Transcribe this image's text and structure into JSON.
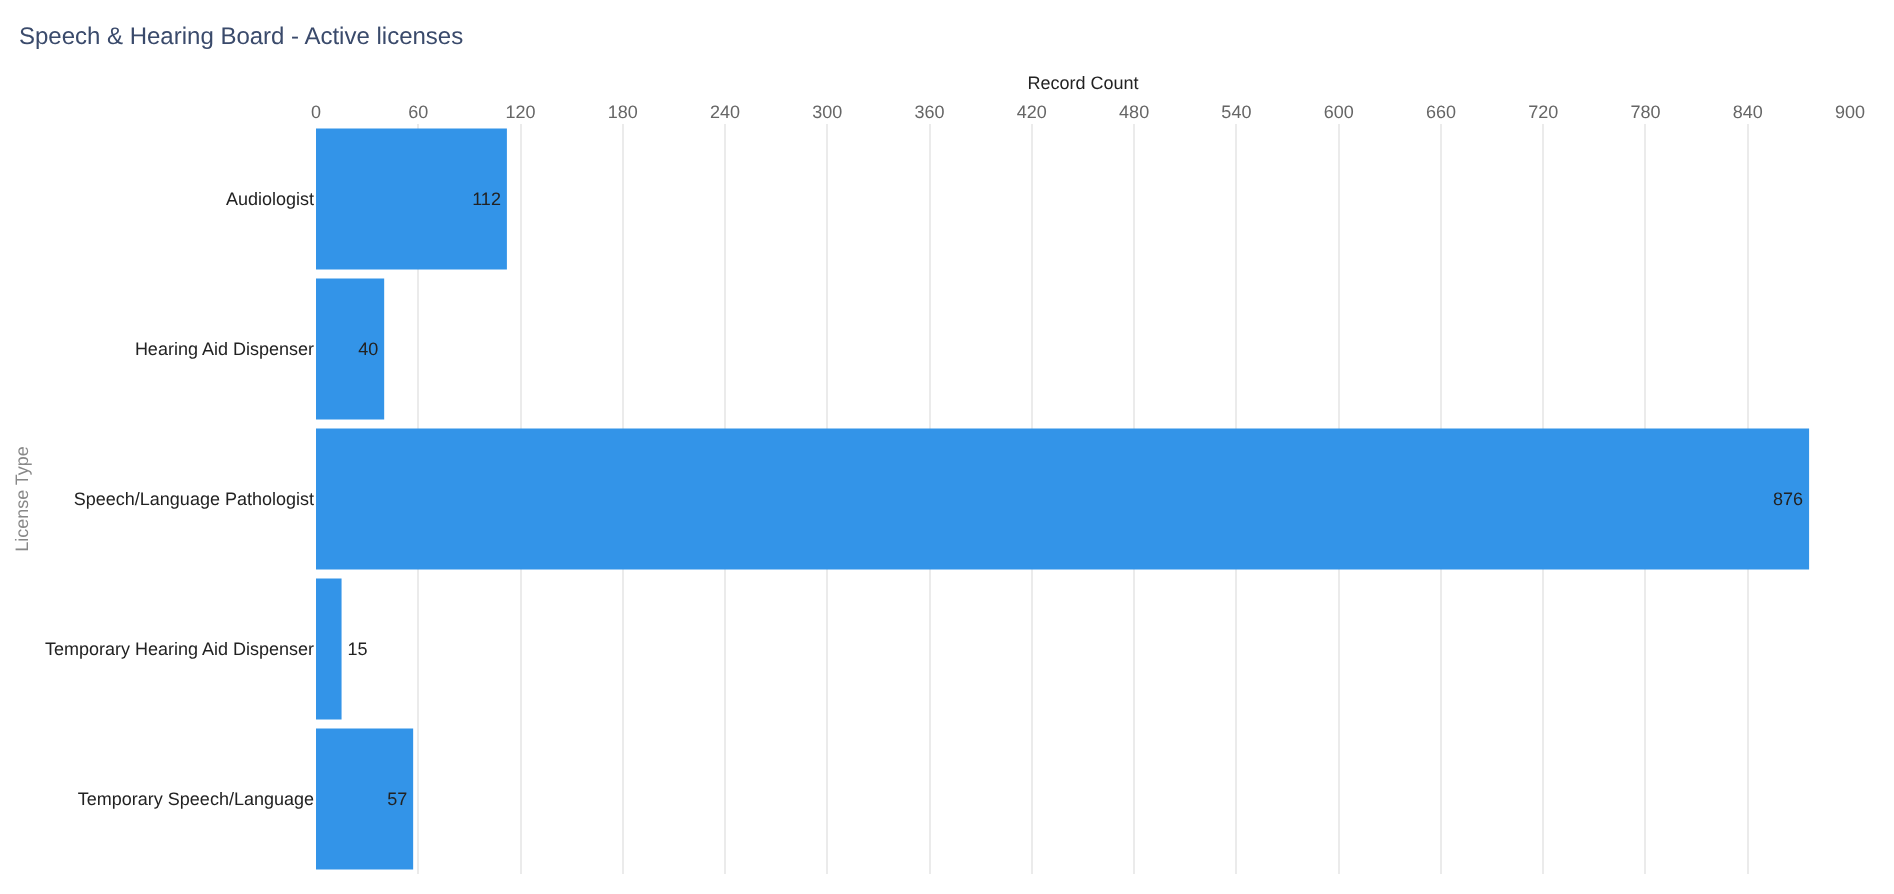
{
  "chart_data": {
    "type": "bar",
    "orientation": "horizontal",
    "title": "Speech & Hearing Board - Active licenses",
    "xlabel": "Record Count",
    "ylabel": "License Type",
    "categories": [
      "Audiologist",
      "Hearing Aid Dispenser",
      "Speech/Language Pathologist",
      "Temporary Hearing Aid Dispenser",
      "Temporary Speech/Language"
    ],
    "values": [
      112,
      40,
      876,
      15,
      57
    ],
    "color": "#3394e8",
    "xlim": [
      0,
      900
    ],
    "xticks": [
      0,
      60,
      120,
      180,
      240,
      300,
      360,
      420,
      480,
      540,
      600,
      660,
      720,
      780,
      840,
      900
    ],
    "grid": "x",
    "data_labels": true
  }
}
